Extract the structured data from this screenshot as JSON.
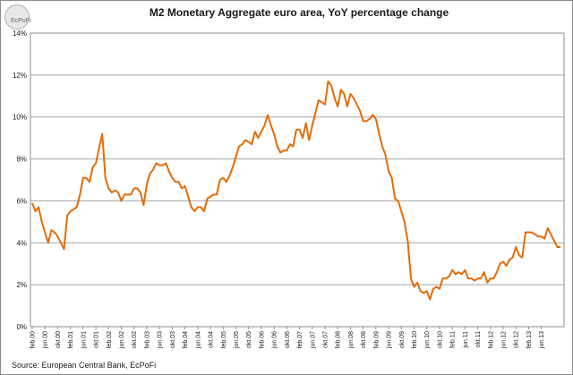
{
  "logo": {
    "text": "EcPoFi"
  },
  "source": "Source: European  Central Bank, EcPoFi",
  "chart_data": {
    "type": "line",
    "title": "M2 Monetary Aggregate euro area, YoY percentage change",
    "xlabel": "",
    "ylabel": "",
    "ylim": [
      0,
      14
    ],
    "y_ticks": [
      0,
      2,
      4,
      6,
      8,
      10,
      12,
      14
    ],
    "y_tick_labels": [
      "0%",
      "2%",
      "4%",
      "6%",
      "8%",
      "10%",
      "12%",
      "14%"
    ],
    "x_tick_labels": [
      "feb.00",
      "jun.00",
      "okt.00",
      "feb.01",
      "jun.01",
      "okt.01",
      "feb.02",
      "jun.02",
      "okt.02",
      "feb.03",
      "jun.03",
      "okt.03",
      "feb.04",
      "jun.04",
      "okt.04",
      "feb.05",
      "jun.05",
      "okt.05",
      "feb.06",
      "jun.06",
      "okt.06",
      "feb.07",
      "jun.07",
      "okt.07",
      "feb.08",
      "jun.08",
      "okt.08",
      "feb.09",
      "jun.09",
      "okt.09",
      "feb.10",
      "jun.10",
      "okt.10",
      "feb.11",
      "jun.11",
      "okt.11",
      "feb.12",
      "jun.12",
      "okt.12",
      "feb.13",
      "jun.13"
    ],
    "grid": true,
    "line_color": "#e36c0a",
    "series": [
      {
        "values": [
          5.9,
          5.5,
          5.7,
          5.0,
          4.5,
          4.0,
          4.6,
          4.5,
          4.3,
          4.0,
          3.7,
          5.3,
          5.5,
          5.6,
          5.7,
          6.3,
          7.1,
          7.1,
          6.9,
          7.6,
          7.8,
          8.5,
          9.2,
          7.1,
          6.6,
          6.4,
          6.5,
          6.4,
          6.0,
          6.3,
          6.3,
          6.3,
          6.6,
          6.6,
          6.4,
          5.8,
          6.8,
          7.3,
          7.5,
          7.8,
          7.7,
          7.7,
          7.8,
          7.4,
          7.1,
          6.9,
          6.9,
          6.6,
          6.7,
          6.2,
          5.7,
          5.5,
          5.7,
          5.7,
          5.5,
          6.1,
          6.2,
          6.3,
          6.3,
          7.0,
          7.1,
          6.9,
          7.2,
          7.6,
          8.1,
          8.6,
          8.7,
          8.9,
          8.8,
          8.7,
          9.3,
          9.0,
          9.3,
          9.6,
          10.1,
          9.6,
          9.2,
          8.6,
          8.3,
          8.4,
          8.4,
          8.7,
          8.6,
          9.4,
          9.4,
          9.0,
          9.7,
          8.9,
          9.6,
          10.2,
          10.8,
          10.7,
          10.6,
          11.7,
          11.5,
          10.9,
          10.5,
          11.3,
          11.1,
          10.5,
          11.1,
          10.9,
          10.6,
          10.3,
          9.8,
          9.8,
          9.9,
          10.1,
          9.9,
          9.2,
          8.6,
          8.2,
          7.4,
          7.1,
          6.1,
          6.0,
          5.5,
          5.0,
          4.1,
          2.3,
          1.9,
          2.1,
          1.7,
          1.6,
          1.7,
          1.3,
          1.8,
          1.9,
          1.8,
          2.3,
          2.3,
          2.4,
          2.7,
          2.5,
          2.6,
          2.5,
          2.7,
          2.3,
          2.3,
          2.2,
          2.3,
          2.3,
          2.6,
          2.1,
          2.3,
          2.3,
          2.6,
          3.0,
          3.1,
          2.9,
          3.2,
          3.3,
          3.8,
          3.4,
          3.3,
          4.5,
          4.5,
          4.5,
          4.4,
          4.3,
          4.3,
          4.2,
          4.7,
          4.4,
          4.1,
          3.8,
          3.8
        ]
      }
    ]
  }
}
